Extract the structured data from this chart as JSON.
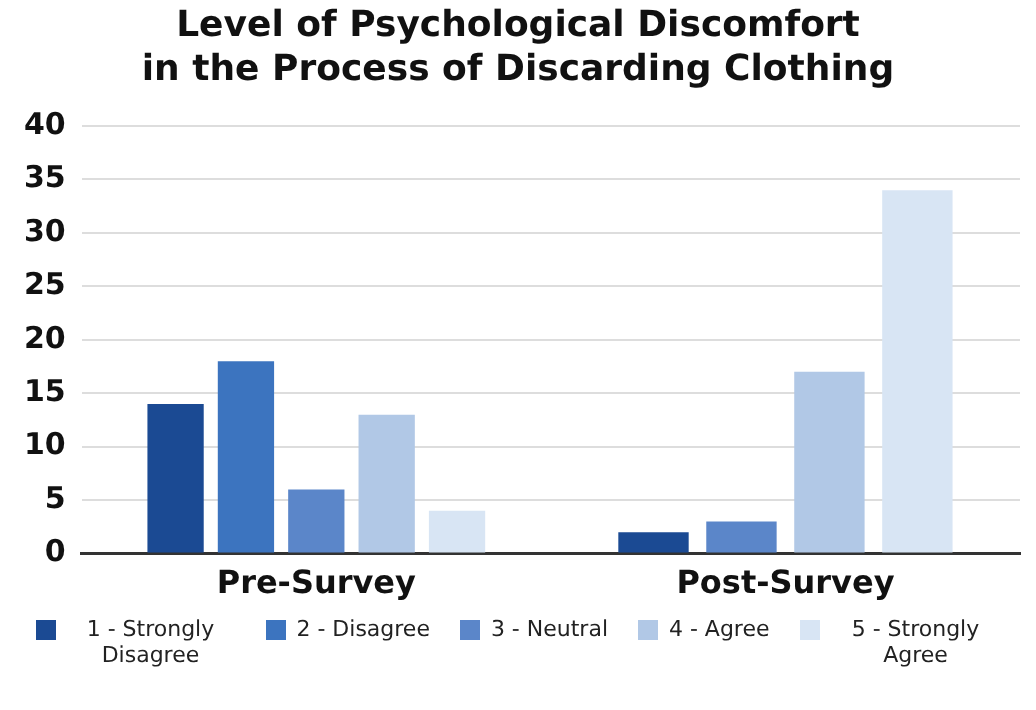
{
  "chart_data": {
    "type": "bar",
    "title": "Level of Psychological Discomfort\nin the Process of Discarding Clothing",
    "categories": [
      "Pre-Survey",
      "Post-Survey"
    ],
    "series": [
      {
        "name": "1 - Strongly Disagree",
        "color": "#1b4a93",
        "values": [
          14,
          2
        ]
      },
      {
        "name": "2 - Disagree",
        "color": "#3c74bf",
        "values": [
          18,
          null
        ]
      },
      {
        "name": "3 - Neutral",
        "color": "#5b86c9",
        "values": [
          6,
          3
        ]
      },
      {
        "name": "4 - Agree",
        "color": "#b1c8e6",
        "values": [
          13,
          17
        ]
      },
      {
        "name": "5 - Strongly Agree",
        "color": "#d8e5f4",
        "values": [
          4,
          34
        ]
      }
    ],
    "ylim": [
      0,
      40
    ],
    "yticks": [
      0,
      5,
      10,
      15,
      20,
      25,
      30,
      35,
      40
    ],
    "grid": "y",
    "legend": "bottom"
  }
}
